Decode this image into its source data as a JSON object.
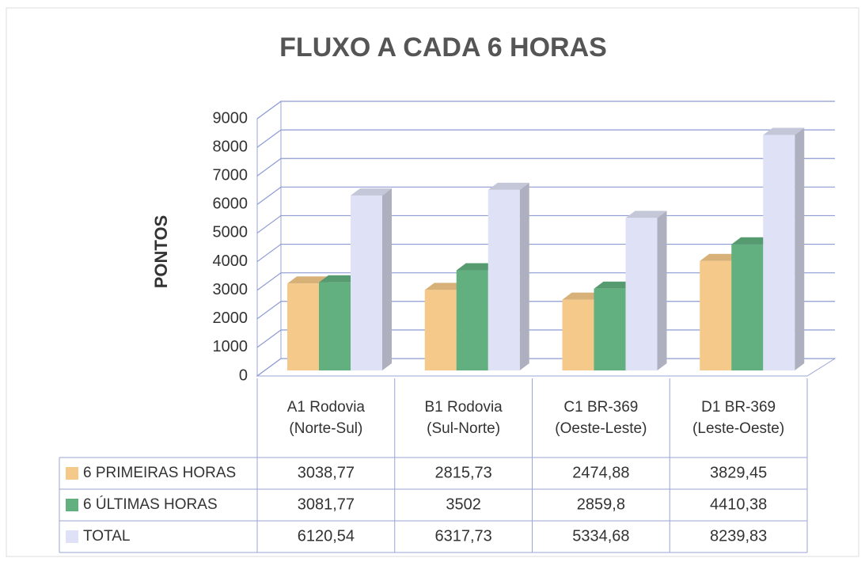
{
  "chart_data": {
    "type": "bar3d",
    "title": "FLUXO A CADA 6 HORAS",
    "y_label": "PONTOS",
    "categories": [
      "A1 Rodovia (Norte-Sul)",
      "B1 Rodovia (Sul-Norte)",
      "C1 BR-369 (Oeste-Leste)",
      "D1 BR-369 (Leste-Oeste)"
    ],
    "series": [
      {
        "name": "6 PRIMEIRAS HORAS",
        "color": "#f5c98a",
        "values": [
          3038.77,
          2815.73,
          2474.88,
          3829.45
        ],
        "value_labels": [
          "3038,77",
          "2815,73",
          "2474,88",
          "3829,45"
        ]
      },
      {
        "name": "6 ÚLTIMAS HORAS",
        "color": "#62b07f",
        "values": [
          3081.77,
          3502,
          2859.8,
          4410.38
        ],
        "value_labels": [
          "3081,77",
          "3502",
          "2859,8",
          "4410,38"
        ]
      },
      {
        "name": "TOTAL",
        "color": "#dfe2f6",
        "values": [
          6120.54,
          6317.73,
          5334.68,
          8239.83
        ],
        "value_labels": [
          "6120,54",
          "6317,73",
          "5334,68",
          "8239,83"
        ]
      }
    ],
    "ylim": [
      0,
      9000
    ],
    "yticks": [
      0,
      1000,
      2000,
      3000,
      4000,
      5000,
      6000,
      7000,
      8000,
      9000
    ],
    "grid": true,
    "data_table": true
  }
}
